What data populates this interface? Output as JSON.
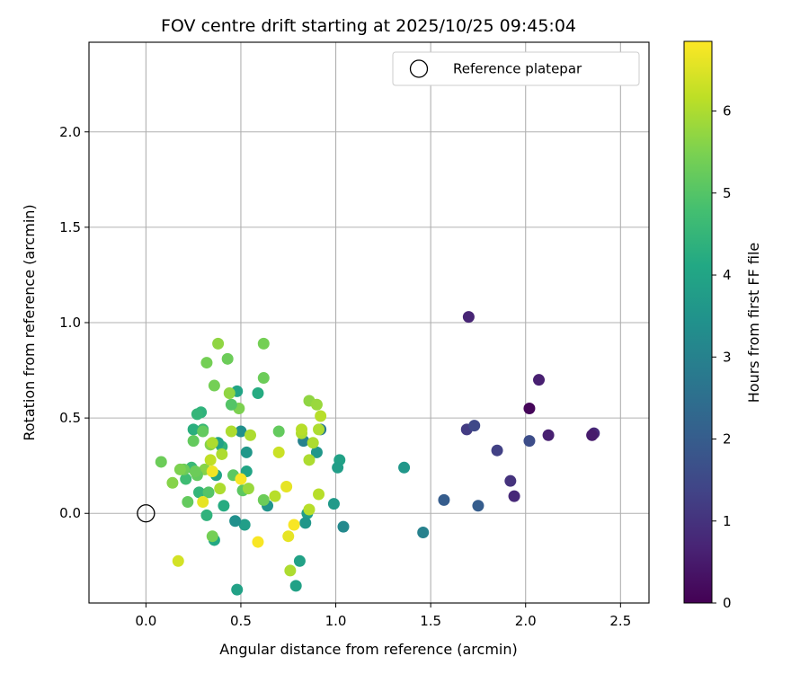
{
  "chart_data": {
    "type": "scatter",
    "title": "FOV centre drift starting at 2025/10/25 09:45:04",
    "xlabel": "Angular distance from reference (arcmin)",
    "ylabel": "Rotation from reference (arcmin)",
    "xlim": [
      -0.3,
      2.65
    ],
    "ylim": [
      -0.47,
      2.47
    ],
    "xticks": [
      0.0,
      0.5,
      1.0,
      1.5,
      2.0,
      2.5
    ],
    "xtick_labels": [
      "0.0",
      "0.5",
      "1.0",
      "1.5",
      "2.0",
      "2.5"
    ],
    "yticks": [
      0.0,
      0.5,
      1.0,
      1.5,
      2.0
    ],
    "ytick_labels": [
      "0.0",
      "0.5",
      "1.0",
      "1.5",
      "2.0"
    ],
    "grid": true,
    "legend": {
      "position": "top-right",
      "entries": [
        {
          "label": "Reference platepar",
          "marker": "open-circle",
          "x": 0.0,
          "y": 0.0
        }
      ]
    },
    "colorbar": {
      "label": "Hours from first FF file",
      "min": 0,
      "max": 6.85,
      "ticks": [
        0,
        1,
        2,
        3,
        4,
        5,
        6
      ],
      "tick_labels": [
        "0",
        "1",
        "2",
        "3",
        "4",
        "5",
        "6"
      ],
      "colormap": "viridis"
    },
    "points": [
      [
        1.7,
        1.03,
        0.7
      ],
      [
        2.07,
        0.7,
        0.6
      ],
      [
        2.02,
        0.55,
        0.1
      ],
      [
        2.36,
        0.42,
        0.8
      ],
      [
        2.35,
        0.41,
        0.5
      ],
      [
        2.12,
        0.41,
        0.6
      ],
      [
        1.69,
        0.44,
        1.2
      ],
      [
        1.73,
        0.46,
        1.5
      ],
      [
        2.02,
        0.38,
        1.6
      ],
      [
        1.85,
        0.33,
        1.3
      ],
      [
        1.92,
        0.17,
        1.0
      ],
      [
        1.94,
        0.09,
        0.8
      ],
      [
        1.57,
        0.07,
        2.0
      ],
      [
        1.75,
        0.04,
        2.0
      ],
      [
        1.36,
        0.24,
        3.6
      ],
      [
        1.46,
        -0.1,
        3.0
      ],
      [
        1.04,
        -0.07,
        3.2
      ],
      [
        1.02,
        0.28,
        3.9
      ],
      [
        1.01,
        0.24,
        3.8
      ],
      [
        0.99,
        0.05,
        3.7
      ],
      [
        0.92,
        0.44,
        2.8
      ],
      [
        0.9,
        0.32,
        3.6
      ],
      [
        0.85,
        0.0,
        3.8
      ],
      [
        0.84,
        -0.05,
        3.6
      ],
      [
        0.83,
        0.38,
        3.0
      ],
      [
        0.81,
        -0.25,
        3.9
      ],
      [
        0.79,
        -0.38,
        3.9
      ],
      [
        0.64,
        0.04,
        3.5
      ],
      [
        0.59,
        0.63,
        4.2
      ],
      [
        0.53,
        0.22,
        4.0
      ],
      [
        0.53,
        0.32,
        3.6
      ],
      [
        0.52,
        -0.06,
        3.8
      ],
      [
        0.5,
        0.43,
        3.4
      ],
      [
        0.48,
        0.64,
        4.0
      ],
      [
        0.47,
        -0.04,
        3.4
      ],
      [
        0.48,
        -0.4,
        3.9
      ],
      [
        0.41,
        0.04,
        4.2
      ],
      [
        0.4,
        0.35,
        4.4
      ],
      [
        0.38,
        0.37,
        3.9
      ],
      [
        0.37,
        0.2,
        4.0
      ],
      [
        0.36,
        -0.14,
        4.1
      ],
      [
        0.32,
        -0.01,
        4.4
      ],
      [
        0.3,
        0.44,
        4.6
      ],
      [
        0.29,
        0.53,
        4.4
      ],
      [
        0.28,
        0.11,
        4.5
      ],
      [
        0.27,
        0.52,
        4.5
      ],
      [
        0.25,
        0.44,
        4.3
      ],
      [
        0.24,
        0.24,
        4.6
      ],
      [
        0.21,
        0.18,
        4.7
      ],
      [
        0.7,
        0.43,
        5.2
      ],
      [
        0.62,
        0.07,
        5.3
      ],
      [
        0.51,
        0.12,
        5.1
      ],
      [
        0.49,
        0.55,
        5.5
      ],
      [
        0.46,
        0.2,
        5.1
      ],
      [
        0.45,
        0.57,
        5.0
      ],
      [
        0.44,
        0.63,
        5.7
      ],
      [
        0.43,
        0.81,
        5.3
      ],
      [
        0.38,
        0.89,
        5.7
      ],
      [
        0.36,
        0.67,
        5.4
      ],
      [
        0.35,
        -0.12,
        5.4
      ],
      [
        0.34,
        0.36,
        5.6
      ],
      [
        0.33,
        0.11,
        5.0
      ],
      [
        0.32,
        0.79,
        5.4
      ],
      [
        0.31,
        0.23,
        5.6
      ],
      [
        0.3,
        0.43,
        5.2
      ],
      [
        0.27,
        0.2,
        5.2
      ],
      [
        0.26,
        0.22,
        5.3
      ],
      [
        0.25,
        0.38,
        5.2
      ],
      [
        0.22,
        0.06,
        5.2
      ],
      [
        0.2,
        0.23,
        5.3
      ],
      [
        0.18,
        0.23,
        5.5
      ],
      [
        0.14,
        0.16,
        5.6
      ],
      [
        0.08,
        0.27,
        5.3
      ],
      [
        0.62,
        0.89,
        5.4
      ],
      [
        0.62,
        0.71,
        5.3
      ],
      [
        0.86,
        0.59,
        5.7
      ],
      [
        0.9,
        0.57,
        5.8
      ],
      [
        0.92,
        0.51,
        6.1
      ],
      [
        0.91,
        0.44,
        6.0
      ],
      [
        0.88,
        0.37,
        6.0
      ],
      [
        0.86,
        0.28,
        6.0
      ],
      [
        0.86,
        0.02,
        6.1
      ],
      [
        0.82,
        0.42,
        6.0
      ],
      [
        0.82,
        0.44,
        6.1
      ],
      [
        0.76,
        -0.3,
        6.0
      ],
      [
        0.7,
        0.32,
        6.3
      ],
      [
        0.68,
        0.09,
        6.1
      ],
      [
        0.55,
        0.41,
        6.0
      ],
      [
        0.54,
        0.13,
        5.8
      ],
      [
        0.45,
        0.43,
        6.0
      ],
      [
        0.4,
        0.31,
        6.0
      ],
      [
        0.39,
        0.13,
        6.0
      ],
      [
        0.35,
        0.37,
        6.0
      ],
      [
        0.34,
        0.28,
        6.2
      ],
      [
        0.91,
        0.1,
        6.1
      ],
      [
        0.17,
        -0.25,
        6.4
      ],
      [
        0.74,
        0.14,
        6.6
      ],
      [
        0.78,
        -0.06,
        6.8
      ],
      [
        0.75,
        -0.12,
        6.6
      ],
      [
        0.59,
        -0.15,
        6.8
      ],
      [
        0.5,
        0.18,
        6.8
      ],
      [
        0.35,
        0.22,
        6.7
      ],
      [
        0.3,
        0.06,
        6.6
      ]
    ]
  }
}
